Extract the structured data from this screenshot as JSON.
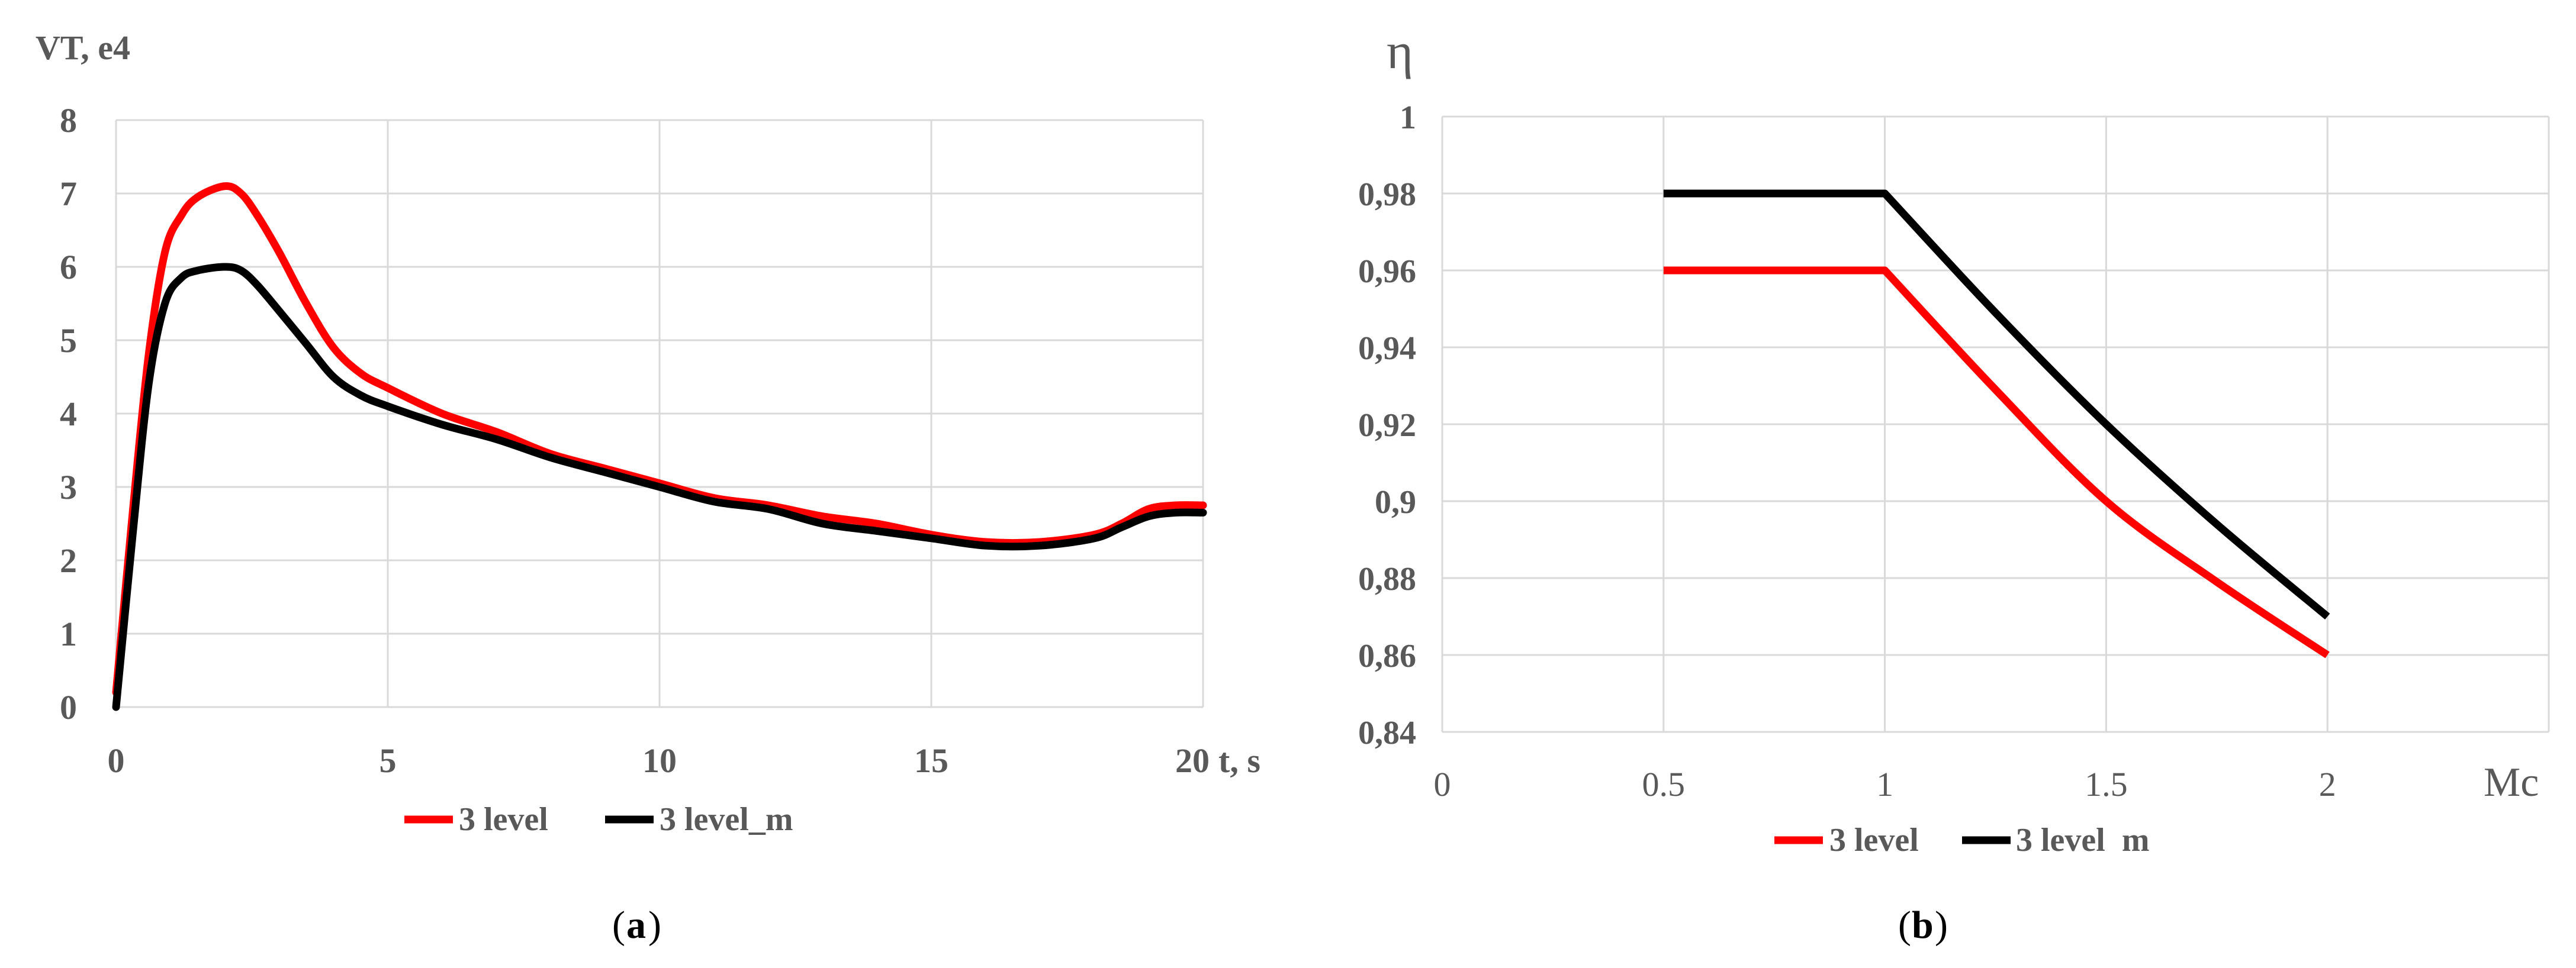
{
  "colors": {
    "red": "#ff0000",
    "black": "#000000",
    "grid": "#d9d9d9",
    "text": "#595959"
  },
  "chart_data": [
    {
      "type": "line",
      "panel": "a",
      "caption_letter": "a",
      "ylabel": "VT, e4",
      "xlabel": "t, s",
      "xlim": [
        0,
        20
      ],
      "ylim": [
        0,
        8
      ],
      "xticks": [
        0,
        5,
        10,
        15,
        20
      ],
      "yticks": [
        0,
        1,
        2,
        3,
        4,
        5,
        6,
        7,
        8
      ],
      "grid": true,
      "legend": "bottom",
      "series": [
        {
          "name": "3 level",
          "color": "red",
          "x": [
            0,
            0.3,
            0.6,
            0.9,
            1.2,
            1.5,
            2.0,
            2.3,
            2.6,
            3.0,
            3.5,
            4.0,
            4.5,
            5.0,
            6.0,
            7.0,
            8.0,
            9.0,
            10.0,
            11.0,
            12.0,
            13.0,
            14.0,
            15.0,
            16.0,
            17.0,
            18.0,
            18.5,
            19.0,
            19.5,
            20.0
          ],
          "y": [
            0.2,
            2.6,
            4.8,
            6.2,
            6.7,
            6.95,
            7.1,
            7.0,
            6.7,
            6.2,
            5.5,
            4.9,
            4.55,
            4.35,
            4.0,
            3.75,
            3.45,
            3.25,
            3.05,
            2.85,
            2.75,
            2.6,
            2.5,
            2.35,
            2.25,
            2.25,
            2.35,
            2.5,
            2.7,
            2.75,
            2.75
          ]
        },
        {
          "name": "3 level_m",
          "color": "black",
          "x": [
            0,
            0.3,
            0.6,
            0.9,
            1.2,
            1.5,
            2.0,
            2.3,
            2.6,
            3.0,
            3.5,
            4.0,
            4.5,
            5.0,
            6.0,
            7.0,
            8.0,
            9.0,
            10.0,
            11.0,
            12.0,
            13.0,
            14.0,
            15.0,
            16.0,
            17.0,
            18.0,
            18.5,
            19.0,
            19.5,
            20.0
          ],
          "y": [
            0.0,
            2.3,
            4.4,
            5.5,
            5.85,
            5.95,
            6.0,
            5.95,
            5.75,
            5.4,
            4.95,
            4.5,
            4.25,
            4.1,
            3.85,
            3.65,
            3.4,
            3.2,
            3.0,
            2.8,
            2.7,
            2.5,
            2.4,
            2.3,
            2.2,
            2.2,
            2.3,
            2.45,
            2.6,
            2.65,
            2.65
          ]
        }
      ]
    },
    {
      "type": "line",
      "panel": "b",
      "caption_letter": "b",
      "ylabel": "η",
      "xlabel": "Mc",
      "xlim": [
        0,
        2.5
      ],
      "ylim": [
        0.84,
        1.0
      ],
      "xticks": [
        "0",
        "0.5",
        "1",
        "1.5",
        "2"
      ],
      "xtick_values": [
        0,
        0.5,
        1,
        1.5,
        2
      ],
      "yticks": [
        "0,84",
        "0,86",
        "0,88",
        "0,9",
        "0,92",
        "0,94",
        "0,96",
        "0,98",
        "1"
      ],
      "ytick_values": [
        0.84,
        0.86,
        0.88,
        0.9,
        0.92,
        0.94,
        0.96,
        0.98,
        1.0
      ],
      "grid": true,
      "legend": "bottom",
      "series": [
        {
          "name": "3 level",
          "color": "red",
          "x": [
            0.5,
            1.0,
            1.25,
            1.5,
            1.75,
            2.0
          ],
          "y": [
            0.96,
            0.96,
            0.929,
            0.9,
            0.879,
            0.86
          ]
        },
        {
          "name": "3 level  m",
          "color": "black",
          "x": [
            0.5,
            1.0,
            1.25,
            1.5,
            1.75,
            2.0
          ],
          "y": [
            0.98,
            0.98,
            0.949,
            0.92,
            0.894,
            0.87
          ]
        }
      ]
    }
  ]
}
